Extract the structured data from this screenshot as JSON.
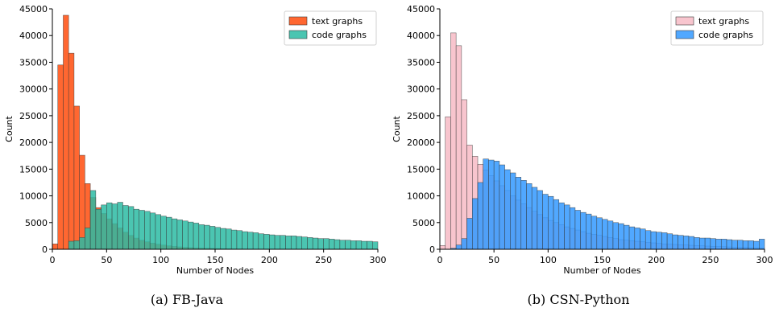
{
  "chart_data": [
    {
      "type": "bar",
      "caption": "(a) FB-Java",
      "xlabel": "Number of Nodes",
      "ylabel": "Count",
      "xlim": [
        0,
        300
      ],
      "ylim": [
        0,
        45000
      ],
      "xticks": [
        "0",
        "50",
        "100",
        "150",
        "200",
        "250",
        "300"
      ],
      "yticks": [
        "0",
        "5000",
        "10000",
        "15000",
        "20000",
        "25000",
        "30000",
        "35000",
        "40000",
        "45000"
      ],
      "bin_width": 5,
      "grid": false,
      "legend_position": "top-right",
      "series": [
        {
          "name": "text graphs",
          "color": "#ff5a1f",
          "values": [
            1000,
            34500,
            43800,
            36700,
            26800,
            17600,
            12300,
            9700,
            7800,
            6700,
            5700,
            4800,
            4000,
            3200,
            2600,
            2100,
            1700,
            1400,
            1150,
            950,
            800,
            650,
            540,
            450,
            380,
            320,
            270,
            230,
            190,
            160,
            130,
            110,
            90,
            75,
            60,
            50,
            40,
            35,
            30,
            25,
            20,
            18,
            15,
            12,
            10,
            8,
            7,
            6,
            5,
            4,
            3,
            3,
            2,
            2,
            2,
            2,
            1,
            1,
            1,
            1
          ]
        },
        {
          "name": "code graphs",
          "color": "#2bbba3",
          "values": [
            0,
            0,
            0,
            1500,
            1600,
            2200,
            4000,
            11000,
            7500,
            8300,
            8700,
            8500,
            8800,
            8200,
            8000,
            7500,
            7300,
            7100,
            6800,
            6500,
            6200,
            6000,
            5700,
            5500,
            5300,
            5100,
            4900,
            4600,
            4500,
            4300,
            4100,
            3900,
            3800,
            3600,
            3500,
            3300,
            3200,
            3100,
            2900,
            2800,
            2700,
            2600,
            2600,
            2500,
            2500,
            2400,
            2300,
            2200,
            2100,
            2000,
            2000,
            1900,
            1800,
            1700,
            1700,
            1600,
            1600,
            1500,
            1500,
            1400
          ]
        }
      ]
    },
    {
      "type": "bar",
      "caption": "(b) CSN-Python",
      "xlabel": "Number of Nodes",
      "ylabel": "Count",
      "xlim": [
        0,
        300
      ],
      "ylim": [
        0,
        45000
      ],
      "xticks": [
        "0",
        "50",
        "100",
        "150",
        "200",
        "250",
        "300"
      ],
      "yticks": [
        "0",
        "5000",
        "10000",
        "15000",
        "20000",
        "25000",
        "30000",
        "35000",
        "40000",
        "45000"
      ],
      "bin_width": 5,
      "grid": false,
      "legend_position": "top-right",
      "series": [
        {
          "name": "text graphs",
          "color": "#f7c0ca",
          "values": [
            700,
            24800,
            40500,
            38100,
            28000,
            19500,
            17400,
            15900,
            14800,
            13800,
            12800,
            11900,
            11000,
            10000,
            9200,
            8500,
            7800,
            7100,
            6500,
            5900,
            5400,
            5000,
            4600,
            4200,
            3900,
            3600,
            3300,
            3000,
            2800,
            2600,
            2400,
            2200,
            2000,
            1800,
            1700,
            1600,
            1500,
            1400,
            1300,
            1200,
            1100,
            1000,
            950,
            900,
            850,
            800,
            750,
            700,
            650,
            600,
            560,
            520,
            480,
            440,
            400,
            370,
            340,
            310,
            280,
            250
          ]
        },
        {
          "name": "code graphs",
          "color": "#3399ff",
          "values": [
            0,
            0,
            200,
            800,
            2000,
            5800,
            9500,
            12500,
            16900,
            16700,
            16500,
            15800,
            14900,
            14300,
            13500,
            12900,
            12300,
            11600,
            11000,
            10300,
            9900,
            9300,
            8700,
            8300,
            7800,
            7300,
            6900,
            6600,
            6200,
            5900,
            5600,
            5300,
            5000,
            4800,
            4500,
            4200,
            4000,
            3800,
            3500,
            3300,
            3200,
            3100,
            2900,
            2700,
            2600,
            2500,
            2400,
            2200,
            2100,
            2100,
            2000,
            1900,
            1900,
            1800,
            1700,
            1700,
            1600,
            1600,
            1500,
            1900
          ]
        }
      ]
    }
  ]
}
